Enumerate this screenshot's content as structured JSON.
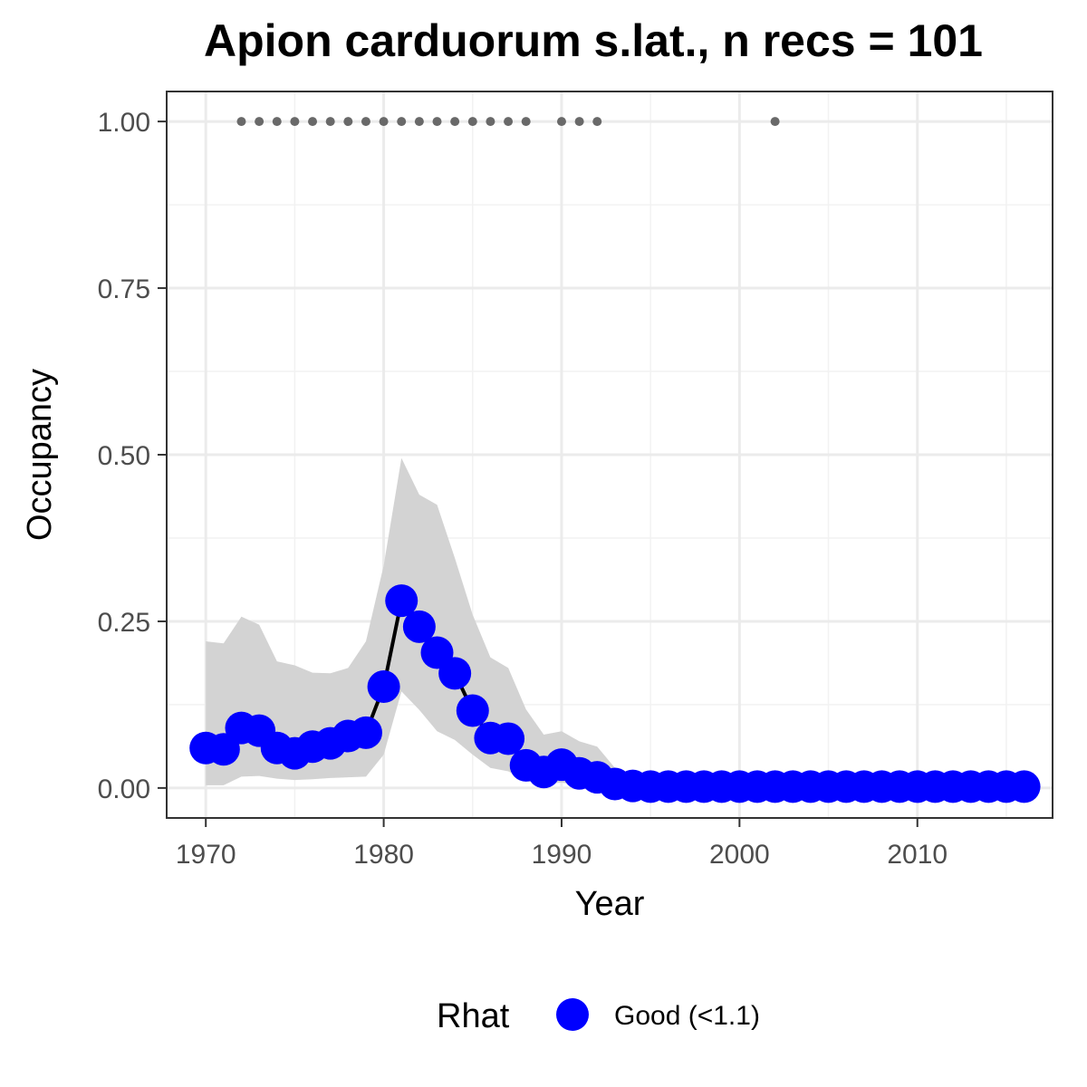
{
  "chart_data": {
    "type": "line",
    "title": "Apion carduorum s.lat., n recs = 101",
    "xlabel": "Year",
    "ylabel": "Occupancy",
    "xlim": [
      1967.8,
      2017.6
    ],
    "ylim": [
      -0.045,
      1.045
    ],
    "x_ticks": [
      1970,
      1980,
      1990,
      2000,
      2010
    ],
    "x_tick_labels": [
      "1970",
      "1980",
      "1990",
      "2000",
      "2010"
    ],
    "x_minor_ticks": [
      1975,
      1985,
      1995,
      2005,
      2015
    ],
    "y_ticks": [
      0,
      0.25,
      0.5,
      0.75,
      1.0
    ],
    "y_tick_labels": [
      "0.00",
      "0.25",
      "0.50",
      "0.75",
      "1.00"
    ],
    "y_minor_ticks": [
      0.125,
      0.375,
      0.625,
      0.875
    ],
    "grid": true,
    "legend": {
      "title": "Rhat",
      "position": "bottom",
      "entries": [
        {
          "label": "Good (<1.1)",
          "color": "#0000ff"
        }
      ]
    },
    "series": [
      {
        "name": "Good (<1.1)",
        "kind": "line+points",
        "color": "#0000ff",
        "line_color": "#000000",
        "x": [
          1970,
          1971,
          1972,
          1973,
          1974,
          1975,
          1976,
          1977,
          1978,
          1979,
          1980,
          1981,
          1982,
          1983,
          1984,
          1985,
          1986,
          1987,
          1988,
          1989,
          1990,
          1991,
          1992,
          1993,
          1994,
          1995,
          1996,
          1997,
          1998,
          1999,
          2000,
          2001,
          2002,
          2003,
          2004,
          2005,
          2006,
          2007,
          2008,
          2009,
          2010,
          2011,
          2012,
          2013,
          2014,
          2015,
          2016
        ],
        "y": [
          0.06,
          0.058,
          0.09,
          0.086,
          0.06,
          0.052,
          0.062,
          0.067,
          0.078,
          0.083,
          0.152,
          0.281,
          0.242,
          0.203,
          0.172,
          0.116,
          0.075,
          0.074,
          0.034,
          0.024,
          0.035,
          0.022,
          0.016,
          0.006,
          0.003,
          0.002,
          0.002,
          0.002,
          0.002,
          0.002,
          0.002,
          0.002,
          0.002,
          0.002,
          0.002,
          0.002,
          0.002,
          0.002,
          0.002,
          0.002,
          0.002,
          0.002,
          0.002,
          0.002,
          0.002,
          0.002,
          0.002
        ]
      },
      {
        "name": "",
        "kind": "ribbon",
        "color": "#d3d3d3",
        "x": [
          1970,
          1971,
          1972,
          1973,
          1974,
          1975,
          1976,
          1977,
          1978,
          1979,
          1980,
          1981,
          1982,
          1983,
          1984,
          1985,
          1986,
          1987,
          1988,
          1989,
          1990,
          1991,
          1992,
          1993,
          1994,
          1995,
          1996,
          1997,
          1998,
          1999,
          2000,
          2001,
          2002,
          2003,
          2004,
          2005,
          2006,
          2007,
          2008,
          2009,
          2010,
          2011,
          2012,
          2013,
          2014,
          2015,
          2016
        ],
        "lower": [
          0.004,
          0.004,
          0.017,
          0.018,
          0.014,
          0.012,
          0.013,
          0.015,
          0.016,
          0.017,
          0.05,
          0.145,
          0.117,
          0.085,
          0.072,
          0.05,
          0.03,
          0.025,
          0.01,
          0.006,
          0.008,
          0.004,
          0.002,
          0.0,
          0.0,
          0.0,
          0.0,
          0.0,
          0.0,
          0.0,
          0.0,
          0.0,
          0.0,
          0.0,
          0.0,
          0.0,
          0.0,
          0.0,
          0.0,
          0.0,
          0.0,
          0.0,
          0.0,
          0.0,
          0.0,
          0.0,
          0.0
        ],
        "upper": [
          0.22,
          0.217,
          0.257,
          0.245,
          0.19,
          0.184,
          0.173,
          0.172,
          0.18,
          0.22,
          0.334,
          0.495,
          0.44,
          0.425,
          0.345,
          0.26,
          0.196,
          0.18,
          0.118,
          0.08,
          0.085,
          0.07,
          0.062,
          0.03,
          0.012,
          0.01,
          0.01,
          0.01,
          0.01,
          0.01,
          0.01,
          0.01,
          0.01,
          0.01,
          0.01,
          0.01,
          0.01,
          0.01,
          0.01,
          0.01,
          0.01,
          0.01,
          0.01,
          0.01,
          0.01,
          0.01,
          0.01
        ]
      },
      {
        "name": "",
        "kind": "points",
        "color": "#696969",
        "x": [
          1972,
          1973,
          1974,
          1975,
          1976,
          1977,
          1978,
          1979,
          1980,
          1981,
          1982,
          1983,
          1984,
          1985,
          1986,
          1987,
          1988,
          1990,
          1991,
          1992,
          2002
        ],
        "y": [
          1,
          1,
          1,
          1,
          1,
          1,
          1,
          1,
          1,
          1,
          1,
          1,
          1,
          1,
          1,
          1,
          1,
          1,
          1,
          1,
          1
        ]
      }
    ]
  }
}
